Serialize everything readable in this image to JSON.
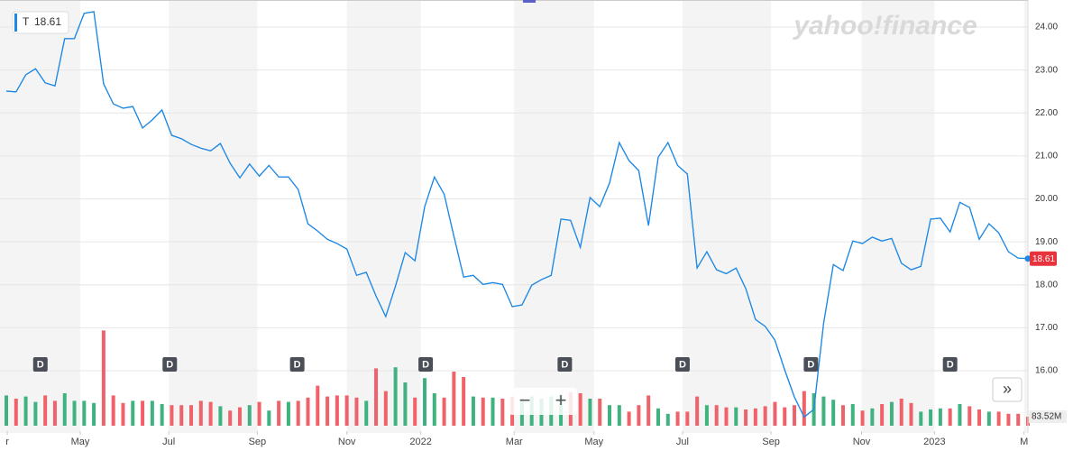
{
  "chart_data": {
    "type": "line",
    "ticker": "T",
    "last_price": {
      "value": 18.61,
      "label": "18.61"
    },
    "watermark": "yahoo!finance",
    "controls": [
      "−",
      "+",
      "»"
    ],
    "xlim": [
      0,
      105
    ],
    "xticks": [
      {
        "value": 0.1,
        "label": "r"
      },
      {
        "value": 7.6,
        "label": "May"
      },
      {
        "value": 16.7,
        "label": "Jul"
      },
      {
        "value": 25.8,
        "label": "Sep"
      },
      {
        "value": 35.0,
        "label": "Nov"
      },
      {
        "value": 42.6,
        "label": "2022"
      },
      {
        "value": 52.2,
        "label": "Mar"
      },
      {
        "value": 60.4,
        "label": "May"
      },
      {
        "value": 69.5,
        "label": "Jul"
      },
      {
        "value": 78.6,
        "label": "Sep"
      },
      {
        "value": 87.9,
        "label": "Nov"
      },
      {
        "value": 95.4,
        "label": "2023"
      },
      {
        "value": 104.6,
        "label": "M"
      }
    ],
    "ylim": [
      14.67,
      24.63
    ],
    "yticks": [
      {
        "value": 16,
        "label": "16.00"
      },
      {
        "value": 17,
        "label": "17.00"
      },
      {
        "value": 18,
        "label": "18.00"
      },
      {
        "value": 19,
        "label": "19.00"
      },
      {
        "value": 20,
        "label": "20.00"
      },
      {
        "value": 21,
        "label": "21.00"
      },
      {
        "value": 22,
        "label": "22.00"
      },
      {
        "value": 23,
        "label": "23.00"
      },
      {
        "value": 24,
        "label": "24.00"
      }
    ],
    "y2lim": [
      0,
      900
    ],
    "grid": true,
    "up_color": "#3fb27f",
    "down_color": "#f0626a",
    "dividends": {
      "label": "D",
      "x": [
        3.5,
        16.8,
        29.9,
        43.1,
        57.4,
        69.5,
        82.7,
        97.0
      ]
    },
    "volume_last": {
      "value": 83.52,
      "label": "83.52M"
    },
    "series": [
      {
        "name": "T",
        "color": "#1e88e5",
        "values": [
          22.51,
          22.49,
          22.89,
          23.03,
          22.7,
          22.63,
          23.73,
          23.73,
          24.32,
          24.36,
          22.68,
          22.21,
          22.11,
          22.15,
          21.65,
          21.84,
          22.07,
          21.48,
          21.4,
          21.27,
          21.18,
          21.12,
          21.29,
          20.83,
          20.49,
          20.81,
          20.53,
          20.78,
          20.51,
          20.51,
          20.22,
          19.42,
          19.25,
          19.06,
          18.96,
          18.83,
          18.22,
          18.29,
          17.74,
          17.26,
          17.97,
          18.75,
          18.56,
          19.82,
          20.51,
          20.11,
          19.13,
          18.18,
          18.22,
          18.01,
          18.05,
          18.01,
          17.49,
          17.53,
          17.99,
          18.12,
          18.22,
          19.53,
          19.5,
          18.87,
          20.03,
          19.82,
          20.37,
          21.31,
          20.89,
          20.66,
          19.38,
          20.97,
          21.31,
          20.78,
          20.58,
          18.39,
          18.77,
          18.35,
          18.26,
          18.39,
          17.91,
          17.19,
          17.03,
          16.71,
          16.02,
          15.39,
          14.92,
          15.1,
          17.1,
          18.47,
          18.33,
          19.02,
          18.96,
          19.11,
          19.02,
          19.08,
          18.5,
          18.35,
          18.43,
          19.53,
          19.55,
          19.23,
          19.92,
          19.8,
          19.06,
          19.42,
          19.21,
          18.77,
          18.62,
          18.61
        ]
      },
      {
        "type": "bar",
        "axis": "y2",
        "values": [
          280,
          250,
          270,
          220,
          280,
          230,
          300,
          230,
          230,
          210,
          880,
          280,
          210,
          230,
          230,
          230,
          200,
          190,
          190,
          190,
          230,
          220,
          180,
          140,
          170,
          190,
          220,
          140,
          230,
          220,
          230,
          260,
          370,
          270,
          280,
          280,
          260,
          230,
          530,
          320,
          540,
          400,
          260,
          440,
          300,
          260,
          500,
          450,
          270,
          260,
          260,
          250,
          270,
          250,
          270,
          250,
          270,
          290,
          310,
          300,
          250,
          250,
          190,
          190,
          130,
          190,
          280,
          160,
          110,
          130,
          130,
          270,
          190,
          190,
          170,
          170,
          150,
          160,
          180,
          220,
          170,
          190,
          320,
          300,
          270,
          240,
          190,
          200,
          140,
          160,
          200,
          220,
          250,
          210,
          130,
          150,
          160,
          160,
          200,
          180,
          150,
          130,
          130,
          110,
          110,
          83.52
        ]
      }
    ]
  }
}
